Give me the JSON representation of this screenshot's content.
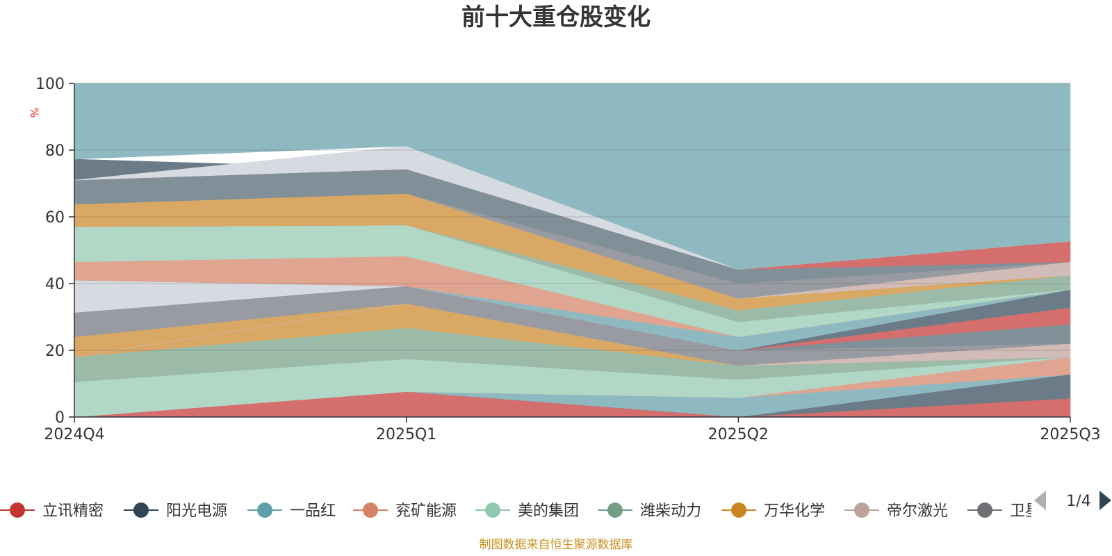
{
  "chart_data": {
    "type": "area",
    "title": "前十大重仓股变化",
    "ylabel": "%",
    "xlabel": "",
    "categories": [
      "2024Q4",
      "2025Q1",
      "2025Q2",
      "2025Q3"
    ],
    "ylim": [
      0,
      100
    ],
    "yticks": [
      0,
      20,
      40,
      60,
      80,
      100
    ],
    "grid": true,
    "stacked": true,
    "bands": [
      {
        "color": "#d46f6d",
        "lower": [
          0,
          0,
          0,
          0
        ],
        "upper": [
          0,
          7.6,
          0,
          5.6
        ]
      },
      {
        "color": "#6b7b87",
        "lower": [
          0,
          7.6,
          0,
          5.6
        ],
        "upper": [
          0,
          7.6,
          0,
          12.8
        ]
      },
      {
        "color": "#8fb9c0",
        "lower": [
          0,
          7.6,
          0,
          12.8
        ],
        "upper": [
          0,
          7.6,
          5.8,
          12.8
        ]
      },
      {
        "color": "#e0a591",
        "lower": [
          0,
          7.6,
          5.8,
          12.8
        ],
        "upper": [
          0,
          7.6,
          5.8,
          18
        ]
      },
      {
        "color": "#b1d8c7",
        "lower": [
          0,
          7.6,
          5.8,
          18
        ],
        "upper": [
          10.5,
          17.4,
          11.2,
          18
        ]
      },
      {
        "color": "#9bbba8",
        "lower": [
          10.5,
          17.4,
          11.2,
          18
        ],
        "upper": [
          18,
          26.7,
          15.4,
          18
        ]
      },
      {
        "color": "#d9a864",
        "lower": [
          18,
          26.7,
          15.4,
          18
        ],
        "upper": [
          24,
          34,
          15.4,
          18
        ]
      },
      {
        "color": "#d2bcb8",
        "lower": [
          18,
          34,
          15.4,
          18
        ],
        "upper": [
          18,
          34,
          15.4,
          22
        ]
      },
      {
        "color": "#989ba1",
        "lower": [
          24,
          34,
          15.4,
          22
        ],
        "upper": [
          31.3,
          39.2,
          20,
          22
        ]
      },
      {
        "color": "#818f98",
        "lower": [
          31.3,
          39.2,
          20,
          22
        ],
        "upper": [
          31.3,
          39.2,
          20,
          27.8
        ]
      },
      {
        "color": "#d46f6d",
        "lower": [
          31.3,
          39.2,
          20,
          27.8
        ],
        "upper": [
          31.3,
          39.2,
          20,
          32.8
        ]
      },
      {
        "color": "#6b7b87",
        "lower": [
          31.3,
          39.2,
          20,
          32.8
        ],
        "upper": [
          31.3,
          39.2,
          20,
          38.2
        ]
      },
      {
        "color": "#d6dae1",
        "lower": [
          31.3,
          39.2,
          20,
          38.2
        ],
        "upper": [
          41,
          39.2,
          20,
          38.2
        ]
      },
      {
        "color": "#8fb9c0",
        "lower": [
          41,
          39.2,
          20,
          38.2
        ],
        "upper": [
          41,
          39.2,
          24,
          38.2
        ]
      },
      {
        "color": "#e0a591",
        "lower": [
          41,
          39.2,
          24,
          38.2
        ],
        "upper": [
          46.5,
          48.2,
          24,
          38.2
        ]
      },
      {
        "color": "#b1d8c7",
        "lower": [
          46.5,
          48.2,
          24,
          38.2
        ],
        "upper": [
          57,
          57.5,
          28.5,
          38.2
        ]
      },
      {
        "color": "#9bbba8",
        "lower": [
          57,
          57.5,
          28.5,
          38.2
        ],
        "upper": [
          57,
          57.5,
          32,
          42.5
        ]
      },
      {
        "color": "#d9a864",
        "lower": [
          57,
          57.5,
          32,
          42.5
        ],
        "upper": [
          63.8,
          67,
          35.5,
          42.5
        ]
      },
      {
        "color": "#d2bcb8",
        "lower": [
          63.8,
          67,
          35.5,
          42.5
        ],
        "upper": [
          63.8,
          67,
          35.5,
          46.5
        ]
      },
      {
        "color": "#989ba1",
        "lower": [
          63.8,
          67,
          35.5,
          46.5
        ],
        "upper": [
          63.8,
          67,
          40,
          46.5
        ]
      },
      {
        "color": "#818f98",
        "lower": [
          63.8,
          67,
          40,
          46.5
        ],
        "upper": [
          71,
          74.3,
          44.2,
          46.5
        ]
      },
      {
        "color": "#d46f6d",
        "lower": [
          71,
          74.3,
          44.2,
          46.5
        ],
        "upper": [
          71,
          74.3,
          44.2,
          52.7
        ]
      },
      {
        "color": "#6b7b87",
        "lower": [
          71,
          74.3,
          44.2,
          52.7
        ],
        "upper": [
          77.3,
          74.3,
          44.2,
          52.7
        ]
      },
      {
        "color": "#d6dae1",
        "lower": [
          71,
          74.3,
          44.2,
          52.7
        ],
        "upper": [
          71,
          81.2,
          44.2,
          52.7
        ]
      },
      {
        "color": "#8fb9c0",
        "lower": [
          77.3,
          81.2,
          44.2,
          52.7
        ],
        "upper": [
          100,
          100,
          100,
          100
        ]
      }
    ]
  },
  "legend": {
    "items": [
      {
        "label": "立讯精密",
        "color": "#c23531"
      },
      {
        "label": "阳光电源",
        "color": "#2f4554"
      },
      {
        "label": "一品红",
        "color": "#61a0a8"
      },
      {
        "label": "兖矿能源",
        "color": "#d48265"
      },
      {
        "label": "美的集团",
        "color": "#91c7ae"
      },
      {
        "label": "潍柴动力",
        "color": "#749f83"
      },
      {
        "label": "万华化学",
        "color": "#ca8622"
      },
      {
        "label": "帝尔激光",
        "color": "#bda29a"
      },
      {
        "label": "卫星化学",
        "color": "#6e7074"
      }
    ],
    "page": "1/4"
  },
  "source": "制图数据来自恒生聚源数据库"
}
